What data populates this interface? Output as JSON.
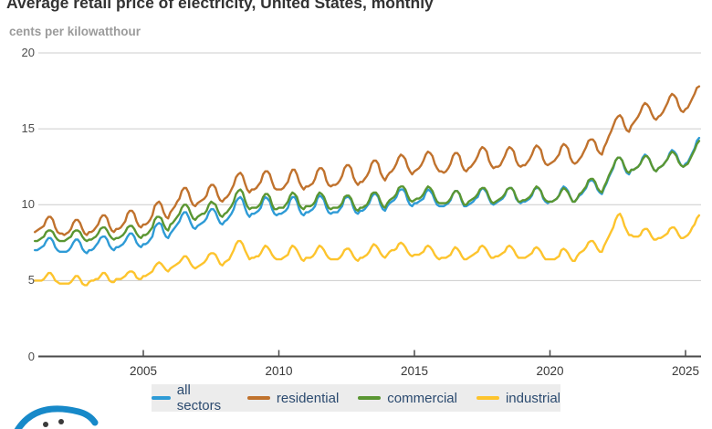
{
  "title": "Average retail price of electricity, United States, monthly",
  "subtitle": "cents per kilowatthour",
  "branding": {
    "logo_name": "eia-logo",
    "logo_color": "#1789c9"
  },
  "axis_colors": {
    "gridline": "#cccccc",
    "axis_line": "#4a4a4a",
    "y_label": "#4d4d4d",
    "x_label": "#383838"
  },
  "legend": {
    "background": "#ececec",
    "text_color": "#2b4a6f"
  },
  "chart_data": {
    "type": "line",
    "title": "Average retail price of electricity, United States, monthly",
    "ylabel": "cents per kilowatthour",
    "xlabel": "",
    "grid": "horizontal",
    "legend_position": "bottom",
    "ylim": [
      0,
      20
    ],
    "xlim": [
      2001.0,
      2025.58
    ],
    "y_ticks": [
      0,
      5,
      10,
      15,
      20
    ],
    "x_ticks": [
      2005,
      2010,
      2015,
      2020,
      2025
    ],
    "frequency": "monthly",
    "x_start_year": 2001,
    "x_start_month": 1,
    "x_end_year": 2025,
    "x_end_month": 7,
    "series": [
      {
        "name": "all sectors",
        "color": "#2e9bd6",
        "values": [
          7.0,
          7.0,
          7.1,
          7.2,
          7.3,
          7.6,
          7.8,
          7.8,
          7.6,
          7.2,
          7.0,
          6.9,
          6.9,
          6.9,
          6.9,
          7.0,
          7.2,
          7.5,
          7.7,
          7.7,
          7.5,
          7.1,
          6.9,
          6.8,
          7.0,
          7.0,
          7.1,
          7.3,
          7.5,
          7.8,
          7.9,
          7.9,
          7.7,
          7.3,
          7.1,
          7.0,
          7.2,
          7.2,
          7.3,
          7.4,
          7.6,
          7.9,
          8.1,
          8.1,
          7.9,
          7.5,
          7.3,
          7.2,
          7.4,
          7.4,
          7.5,
          7.7,
          7.9,
          8.5,
          8.7,
          8.8,
          8.7,
          8.2,
          7.9,
          7.8,
          8.1,
          8.3,
          8.5,
          8.7,
          8.9,
          9.3,
          9.5,
          9.5,
          9.2,
          8.8,
          8.5,
          8.4,
          8.6,
          8.7,
          8.8,
          8.9,
          9.1,
          9.5,
          9.7,
          9.7,
          9.5,
          9.1,
          8.8,
          8.7,
          8.9,
          9.0,
          9.2,
          9.4,
          9.7,
          10.2,
          10.4,
          10.5,
          10.3,
          9.8,
          9.4,
          9.2,
          9.4,
          9.4,
          9.5,
          9.6,
          9.8,
          10.3,
          10.5,
          10.4,
          10.2,
          9.7,
          9.4,
          9.3,
          9.4,
          9.4,
          9.5,
          9.6,
          9.8,
          10.3,
          10.5,
          10.5,
          10.2,
          9.7,
          9.4,
          9.3,
          9.5,
          9.5,
          9.6,
          9.7,
          9.9,
          10.4,
          10.6,
          10.5,
          10.3,
          9.8,
          9.5,
          9.4,
          9.5,
          9.5,
          9.5,
          9.7,
          9.9,
          10.4,
          10.5,
          10.5,
          10.3,
          9.8,
          9.5,
          9.4,
          9.6,
          9.6,
          9.7,
          9.9,
          10.1,
          10.5,
          10.7,
          10.7,
          10.5,
          10.0,
          9.7,
          9.6,
          9.9,
          10.1,
          10.2,
          10.3,
          10.5,
          10.9,
          11.0,
          11.0,
          10.8,
          10.3,
          10.0,
          9.9,
          10.1,
          10.1,
          10.2,
          10.3,
          10.4,
          10.8,
          11.0,
          10.9,
          10.7,
          10.3,
          10.0,
          9.9,
          9.9,
          9.9,
          10.0,
          10.1,
          10.3,
          10.7,
          10.9,
          10.9,
          10.7,
          10.2,
          9.9,
          9.9,
          10.0,
          10.1,
          10.2,
          10.4,
          10.5,
          10.9,
          11.1,
          11.0,
          10.8,
          10.4,
          10.1,
          10.0,
          10.1,
          10.2,
          10.3,
          10.4,
          10.6,
          11.0,
          11.1,
          11.1,
          10.9,
          10.4,
          10.2,
          10.1,
          10.2,
          10.2,
          10.3,
          10.4,
          10.6,
          11.0,
          11.1,
          11.1,
          10.9,
          10.4,
          10.2,
          10.1,
          10.2,
          10.2,
          10.3,
          10.4,
          10.6,
          11.0,
          11.2,
          11.1,
          10.9,
          10.5,
          10.2,
          10.2,
          10.4,
          10.6,
          10.7,
          10.9,
          11.1,
          11.5,
          11.6,
          11.6,
          11.4,
          11.0,
          10.8,
          10.7,
          11.1,
          11.4,
          11.8,
          12.1,
          12.4,
          12.9,
          13.1,
          13.1,
          12.9,
          12.4,
          12.1,
          12.0,
          12.3,
          12.3,
          12.4,
          12.5,
          12.7,
          13.1,
          13.3,
          13.2,
          13.0,
          12.6,
          12.3,
          12.2,
          12.4,
          12.5,
          12.6,
          12.8,
          13.0,
          13.4,
          13.6,
          13.5,
          13.3,
          12.9,
          12.6,
          12.5,
          12.7,
          12.8,
          13.1,
          13.4,
          13.7,
          14.2,
          14.4
        ]
      },
      {
        "name": "residential",
        "color": "#c0722d",
        "values": [
          8.2,
          8.3,
          8.4,
          8.5,
          8.6,
          9.0,
          9.2,
          9.2,
          9.0,
          8.5,
          8.2,
          8.1,
          8.1,
          8.0,
          8.1,
          8.2,
          8.4,
          8.8,
          9.0,
          9.0,
          8.8,
          8.4,
          8.1,
          8.0,
          8.2,
          8.2,
          8.3,
          8.5,
          8.7,
          9.1,
          9.3,
          9.3,
          9.1,
          8.6,
          8.3,
          8.2,
          8.4,
          8.4,
          8.5,
          8.7,
          8.9,
          9.4,
          9.6,
          9.6,
          9.4,
          8.9,
          8.6,
          8.5,
          8.7,
          8.7,
          8.8,
          9.0,
          9.3,
          9.9,
          10.1,
          10.2,
          10.0,
          9.5,
          9.2,
          9.1,
          9.5,
          9.7,
          9.9,
          10.2,
          10.4,
          10.9,
          11.1,
          11.1,
          10.8,
          10.3,
          10.0,
          9.9,
          10.1,
          10.2,
          10.3,
          10.4,
          10.6,
          11.1,
          11.3,
          11.3,
          11.1,
          10.6,
          10.3,
          10.2,
          10.4,
          10.5,
          10.7,
          11.0,
          11.3,
          11.8,
          12.0,
          12.1,
          11.9,
          11.4,
          11.0,
          10.8,
          11.0,
          11.0,
          11.1,
          11.3,
          11.5,
          12.0,
          12.2,
          12.2,
          12.0,
          11.5,
          11.1,
          11.0,
          11.0,
          11.0,
          11.1,
          11.3,
          11.5,
          12.0,
          12.3,
          12.3,
          12.0,
          11.5,
          11.2,
          11.0,
          11.2,
          11.2,
          11.3,
          11.4,
          11.7,
          12.2,
          12.4,
          12.4,
          12.2,
          11.6,
          11.3,
          11.2,
          11.3,
          11.3,
          11.4,
          11.6,
          11.9,
          12.4,
          12.6,
          12.6,
          12.4,
          11.8,
          11.5,
          11.3,
          11.5,
          11.5,
          11.7,
          11.9,
          12.2,
          12.7,
          12.9,
          12.9,
          12.7,
          12.1,
          11.8,
          11.6,
          11.9,
          12.1,
          12.2,
          12.4,
          12.7,
          13.1,
          13.3,
          13.2,
          13.0,
          12.5,
          12.2,
          12.0,
          12.2,
          12.3,
          12.4,
          12.6,
          12.9,
          13.3,
          13.5,
          13.4,
          13.2,
          12.7,
          12.4,
          12.2,
          12.2,
          12.1,
          12.2,
          12.4,
          12.7,
          13.2,
          13.4,
          13.4,
          13.2,
          12.6,
          12.3,
          12.2,
          12.4,
          12.5,
          12.7,
          12.9,
          13.2,
          13.6,
          13.8,
          13.7,
          13.5,
          12.9,
          12.6,
          12.4,
          12.5,
          12.5,
          12.6,
          12.9,
          13.2,
          13.6,
          13.8,
          13.7,
          13.5,
          12.9,
          12.6,
          12.5,
          12.6,
          12.6,
          12.8,
          13.0,
          13.3,
          13.7,
          13.9,
          13.8,
          13.6,
          13.0,
          12.7,
          12.6,
          12.7,
          12.8,
          12.9,
          13.1,
          13.3,
          13.8,
          14.0,
          13.9,
          13.7,
          13.1,
          12.8,
          12.7,
          12.8,
          13.0,
          13.2,
          13.5,
          13.8,
          14.2,
          14.3,
          14.3,
          14.1,
          13.6,
          13.4,
          13.3,
          13.8,
          14.1,
          14.5,
          14.8,
          15.2,
          15.6,
          15.8,
          15.9,
          15.7,
          15.2,
          14.9,
          14.8,
          15.2,
          15.4,
          15.6,
          15.8,
          16.1,
          16.5,
          16.7,
          16.6,
          16.4,
          16.0,
          15.7,
          15.6,
          15.8,
          15.9,
          16.1,
          16.4,
          16.7,
          17.1,
          17.3,
          17.2,
          17.0,
          16.5,
          16.2,
          16.1,
          16.3,
          16.4,
          16.7,
          17.0,
          17.3,
          17.7,
          17.8
        ]
      },
      {
        "name": "commercial",
        "color": "#5a9632",
        "values": [
          7.6,
          7.6,
          7.7,
          7.8,
          7.9,
          8.2,
          8.3,
          8.3,
          8.2,
          7.9,
          7.7,
          7.6,
          7.6,
          7.6,
          7.7,
          7.8,
          7.9,
          8.2,
          8.3,
          8.3,
          8.2,
          7.9,
          7.7,
          7.6,
          7.7,
          7.7,
          7.8,
          7.9,
          8.1,
          8.4,
          8.5,
          8.5,
          8.3,
          8.0,
          7.8,
          7.7,
          7.8,
          7.8,
          7.9,
          8.0,
          8.2,
          8.5,
          8.6,
          8.6,
          8.4,
          8.1,
          7.9,
          7.8,
          8.0,
          8.0,
          8.1,
          8.3,
          8.5,
          9.0,
          9.2,
          9.2,
          9.1,
          8.7,
          8.4,
          8.3,
          8.7,
          8.8,
          9.0,
          9.2,
          9.4,
          9.8,
          10.0,
          10.0,
          9.8,
          9.4,
          9.1,
          9.0,
          9.2,
          9.3,
          9.4,
          9.4,
          9.6,
          10.0,
          10.2,
          10.1,
          10.0,
          9.6,
          9.3,
          9.2,
          9.4,
          9.5,
          9.7,
          9.9,
          10.2,
          10.7,
          10.9,
          11.0,
          10.8,
          10.3,
          9.9,
          9.7,
          9.8,
          9.8,
          9.8,
          9.9,
          10.1,
          10.5,
          10.7,
          10.7,
          10.5,
          10.0,
          9.7,
          9.7,
          9.8,
          9.8,
          9.8,
          10.0,
          10.2,
          10.6,
          10.8,
          10.7,
          10.5,
          10.0,
          9.8,
          9.7,
          9.9,
          9.9,
          9.9,
          10.0,
          10.2,
          10.6,
          10.8,
          10.7,
          10.5,
          10.1,
          9.8,
          9.7,
          9.8,
          9.8,
          9.8,
          9.9,
          10.1,
          10.5,
          10.6,
          10.6,
          10.4,
          10.0,
          9.7,
          9.6,
          9.8,
          9.8,
          9.9,
          10.0,
          10.3,
          10.7,
          10.8,
          10.8,
          10.6,
          10.2,
          9.9,
          9.8,
          10.1,
          10.3,
          10.4,
          10.5,
          10.7,
          11.1,
          11.2,
          11.2,
          11.0,
          10.6,
          10.3,
          10.2,
          10.3,
          10.4,
          10.4,
          10.5,
          10.7,
          11.0,
          11.2,
          11.1,
          10.9,
          10.5,
          10.2,
          10.1,
          10.1,
          10.1,
          10.1,
          10.2,
          10.4,
          10.7,
          10.9,
          10.9,
          10.7,
          10.3,
          10.0,
          10.0,
          10.2,
          10.3,
          10.4,
          10.5,
          10.7,
          11.0,
          11.1,
          11.1,
          10.9,
          10.5,
          10.2,
          10.1,
          10.2,
          10.3,
          10.4,
          10.5,
          10.7,
          11.0,
          11.1,
          11.1,
          10.9,
          10.5,
          10.2,
          10.2,
          10.3,
          10.3,
          10.4,
          10.5,
          10.7,
          11.0,
          11.2,
          11.1,
          10.9,
          10.5,
          10.3,
          10.2,
          10.2,
          10.2,
          10.3,
          10.4,
          10.6,
          10.9,
          11.1,
          11.0,
          10.8,
          10.5,
          10.2,
          10.2,
          10.4,
          10.7,
          10.8,
          11.0,
          11.2,
          11.6,
          11.7,
          11.7,
          11.5,
          11.1,
          10.9,
          10.8,
          11.2,
          11.5,
          11.9,
          12.2,
          12.5,
          12.9,
          13.1,
          13.1,
          12.9,
          12.5,
          12.2,
          12.1,
          12.3,
          12.3,
          12.4,
          12.5,
          12.7,
          13.0,
          13.2,
          13.2,
          13.0,
          12.6,
          12.3,
          12.2,
          12.4,
          12.5,
          12.6,
          12.8,
          13.0,
          13.3,
          13.5,
          13.4,
          13.2,
          12.8,
          12.6,
          12.5,
          12.6,
          12.7,
          13.0,
          13.3,
          13.6,
          14.0,
          14.2
        ]
      },
      {
        "name": "industrial",
        "color": "#fdc42d",
        "values": [
          5.0,
          5.0,
          5.0,
          5.0,
          5.1,
          5.3,
          5.5,
          5.5,
          5.3,
          5.0,
          4.9,
          4.8,
          4.8,
          4.8,
          4.8,
          4.8,
          4.9,
          5.1,
          5.3,
          5.3,
          5.1,
          4.8,
          4.7,
          4.7,
          4.9,
          5.0,
          5.0,
          5.1,
          5.1,
          5.3,
          5.5,
          5.5,
          5.3,
          5.0,
          4.9,
          4.9,
          5.1,
          5.1,
          5.1,
          5.2,
          5.3,
          5.5,
          5.6,
          5.6,
          5.5,
          5.2,
          5.1,
          5.1,
          5.3,
          5.3,
          5.4,
          5.5,
          5.6,
          5.9,
          6.1,
          6.2,
          6.1,
          5.9,
          5.7,
          5.6,
          5.8,
          5.9,
          6.0,
          6.1,
          6.2,
          6.4,
          6.6,
          6.6,
          6.4,
          6.1,
          5.9,
          5.8,
          5.9,
          6.0,
          6.1,
          6.2,
          6.4,
          6.7,
          6.8,
          6.8,
          6.7,
          6.4,
          6.1,
          6.0,
          6.2,
          6.3,
          6.4,
          6.7,
          7.0,
          7.4,
          7.6,
          7.6,
          7.4,
          7.0,
          6.7,
          6.4,
          6.5,
          6.5,
          6.6,
          6.6,
          6.8,
          7.1,
          7.3,
          7.2,
          7.0,
          6.7,
          6.5,
          6.4,
          6.4,
          6.4,
          6.5,
          6.6,
          6.7,
          7.1,
          7.3,
          7.2,
          7.0,
          6.7,
          6.4,
          6.3,
          6.5,
          6.5,
          6.5,
          6.6,
          6.8,
          7.1,
          7.3,
          7.2,
          7.0,
          6.7,
          6.5,
          6.4,
          6.4,
          6.4,
          6.4,
          6.5,
          6.7,
          7.0,
          7.1,
          7.1,
          6.9,
          6.6,
          6.4,
          6.3,
          6.5,
          6.5,
          6.6,
          6.7,
          6.9,
          7.2,
          7.4,
          7.3,
          7.1,
          6.8,
          6.6,
          6.5,
          6.7,
          6.9,
          7.0,
          7.0,
          7.1,
          7.4,
          7.5,
          7.4,
          7.2,
          6.9,
          6.7,
          6.6,
          6.7,
          6.7,
          6.7,
          6.8,
          6.9,
          7.2,
          7.3,
          7.2,
          7.0,
          6.7,
          6.5,
          6.4,
          6.5,
          6.5,
          6.5,
          6.6,
          6.7,
          7.0,
          7.2,
          7.1,
          6.9,
          6.6,
          6.4,
          6.4,
          6.5,
          6.6,
          6.7,
          6.8,
          6.9,
          7.2,
          7.3,
          7.2,
          7.0,
          6.7,
          6.5,
          6.5,
          6.6,
          6.6,
          6.7,
          6.8,
          6.9,
          7.2,
          7.3,
          7.2,
          7.0,
          6.7,
          6.5,
          6.5,
          6.5,
          6.5,
          6.6,
          6.7,
          6.8,
          7.1,
          7.2,
          7.1,
          6.9,
          6.6,
          6.4,
          6.4,
          6.4,
          6.4,
          6.4,
          6.5,
          6.6,
          7.0,
          7.1,
          7.0,
          6.8,
          6.5,
          6.3,
          6.3,
          6.6,
          6.8,
          6.9,
          7.0,
          7.2,
          7.5,
          7.6,
          7.6,
          7.4,
          7.1,
          6.9,
          6.9,
          7.3,
          7.6,
          7.9,
          8.2,
          8.5,
          9.0,
          9.3,
          9.4,
          9.1,
          8.6,
          8.3,
          8.0,
          8.0,
          7.9,
          7.9,
          7.9,
          8.0,
          8.3,
          8.4,
          8.4,
          8.2,
          7.9,
          7.7,
          7.7,
          7.8,
          7.8,
          7.9,
          8.0,
          8.1,
          8.4,
          8.5,
          8.5,
          8.3,
          8.0,
          7.8,
          7.8,
          7.9,
          8.0,
          8.2,
          8.5,
          8.7,
          9.1,
          9.3
        ]
      }
    ]
  }
}
